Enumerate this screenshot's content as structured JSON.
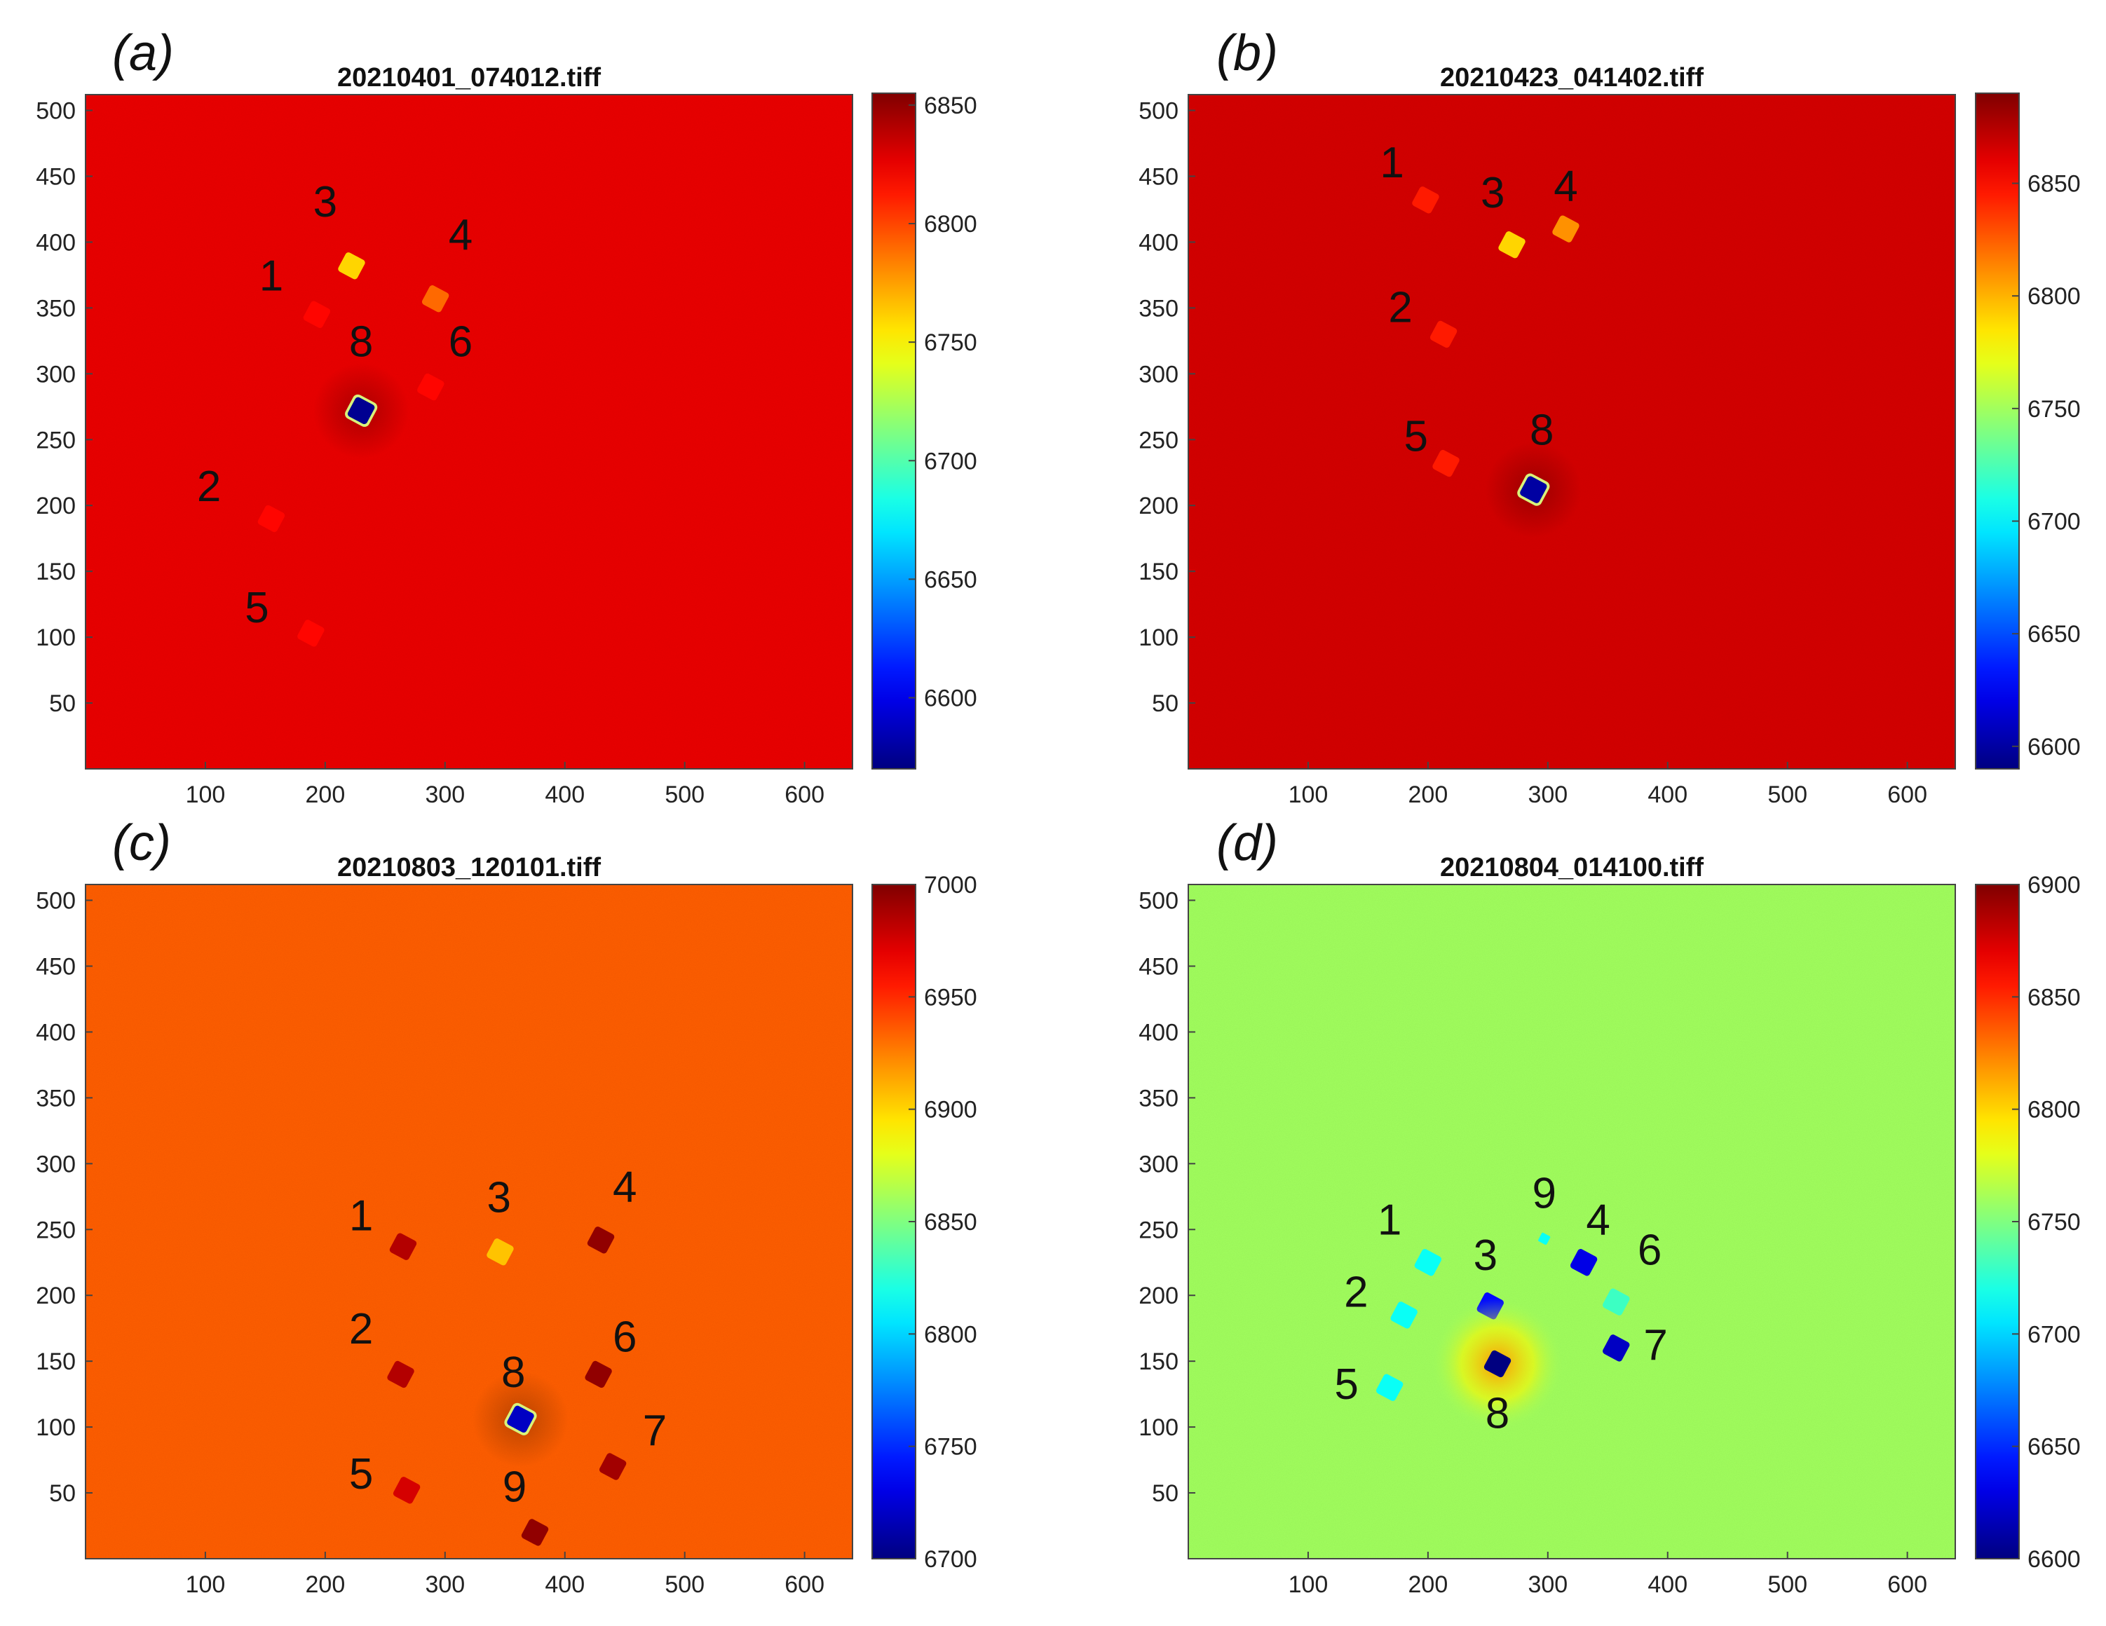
{
  "chart_data": [
    {
      "type": "heatmap",
      "panel_label": "(a)",
      "title": "20210401_074012.tiff",
      "xlim": [
        0,
        640
      ],
      "ylim": [
        0,
        512
      ],
      "xticks": [
        100,
        200,
        300,
        400,
        500,
        600
      ],
      "yticks": [
        50,
        100,
        150,
        200,
        250,
        300,
        350,
        400,
        450,
        500
      ],
      "background_value": 6825,
      "colorbar": {
        "min": 6570,
        "max": 6855,
        "ticks": [
          6600,
          6650,
          6700,
          6750,
          6800,
          6850
        ]
      },
      "markers": [
        {
          "label": "1",
          "x": 193,
          "y": 345,
          "value": 6818,
          "label_x": 155,
          "label_y": 372
        },
        {
          "label": "2",
          "x": 155,
          "y": 190,
          "value": 6818,
          "label_x": 103,
          "label_y": 212
        },
        {
          "label": "3",
          "x": 222,
          "y": 382,
          "value": 6760,
          "label_x": 200,
          "label_y": 428
        },
        {
          "label": "4",
          "x": 292,
          "y": 357,
          "value": 6790,
          "label_x": 313,
          "label_y": 403
        },
        {
          "label": "5",
          "x": 188,
          "y": 103,
          "value": 6818,
          "label_x": 143,
          "label_y": 120
        },
        {
          "label": "6",
          "x": 288,
          "y": 290,
          "value": 6818,
          "label_x": 313,
          "label_y": 322
        },
        {
          "label": "8",
          "x": 230,
          "y": 272,
          "value": 6575,
          "ring": true,
          "label_x": 230,
          "label_y": 322
        }
      ]
    },
    {
      "type": "heatmap",
      "panel_label": "(b)",
      "title": "20210423_041402.tiff",
      "xlim": [
        0,
        640
      ],
      "ylim": [
        0,
        512
      ],
      "xticks": [
        100,
        200,
        300,
        400,
        500,
        600
      ],
      "yticks": [
        50,
        100,
        150,
        200,
        250,
        300,
        350,
        400,
        450,
        500
      ],
      "background_value": 6865,
      "colorbar": {
        "min": 6590,
        "max": 6890,
        "ticks": [
          6600,
          6650,
          6700,
          6750,
          6800,
          6850
        ]
      },
      "markers": [
        {
          "label": "1",
          "x": 198,
          "y": 432,
          "value": 6845,
          "label_x": 170,
          "label_y": 458
        },
        {
          "label": "2",
          "x": 213,
          "y": 330,
          "value": 6845,
          "label_x": 177,
          "label_y": 348
        },
        {
          "label": "3",
          "x": 270,
          "y": 398,
          "value": 6790,
          "label_x": 254,
          "label_y": 435
        },
        {
          "label": "4",
          "x": 315,
          "y": 410,
          "value": 6810,
          "label_x": 315,
          "label_y": 440
        },
        {
          "label": "5",
          "x": 215,
          "y": 232,
          "value": 6845,
          "label_x": 190,
          "label_y": 250
        },
        {
          "label": "8",
          "x": 288,
          "y": 212,
          "value": 6600,
          "ring": true,
          "label_x": 295,
          "label_y": 255
        }
      ]
    },
    {
      "type": "heatmap",
      "panel_label": "(c)",
      "title": "20210803_120101.tiff",
      "xlim": [
        0,
        640
      ],
      "ylim": [
        0,
        512
      ],
      "xticks": [
        100,
        200,
        300,
        400,
        500,
        600
      ],
      "yticks": [
        50,
        100,
        150,
        200,
        250,
        300,
        350,
        400,
        450,
        500
      ],
      "background_value": 6935,
      "colorbar": {
        "min": 6700,
        "max": 7000,
        "ticks": [
          6700,
          6750,
          6800,
          6850,
          6900,
          6950,
          7000
        ]
      },
      "markers": [
        {
          "label": "1",
          "x": 265,
          "y": 237,
          "value": 6985,
          "label_x": 230,
          "label_y": 258
        },
        {
          "label": "2",
          "x": 263,
          "y": 140,
          "value": 6985,
          "label_x": 230,
          "label_y": 172
        },
        {
          "label": "3",
          "x": 346,
          "y": 233,
          "value": 6905,
          "label_x": 345,
          "label_y": 272
        },
        {
          "label": "4",
          "x": 430,
          "y": 242,
          "value": 6995,
          "label_x": 450,
          "label_y": 280
        },
        {
          "label": "5",
          "x": 268,
          "y": 52,
          "value": 6975,
          "label_x": 230,
          "label_y": 62
        },
        {
          "label": "6",
          "x": 428,
          "y": 140,
          "value": 6995,
          "label_x": 450,
          "label_y": 166
        },
        {
          "label": "7",
          "x": 440,
          "y": 70,
          "value": 6990,
          "label_x": 475,
          "label_y": 95
        },
        {
          "label": "8",
          "x": 363,
          "y": 106,
          "value": 6720,
          "ring": true,
          "label_x": 357,
          "label_y": 139
        },
        {
          "label": "9",
          "x": 375,
          "y": 20,
          "value": 6995,
          "label_x": 358,
          "label_y": 52
        }
      ]
    },
    {
      "type": "heatmap",
      "panel_label": "(d)",
      "title": "20210804_014100.tiff",
      "xlim": [
        0,
        640
      ],
      "ylim": [
        0,
        512
      ],
      "xticks": [
        100,
        200,
        300,
        400,
        500,
        600
      ],
      "yticks": [
        50,
        100,
        150,
        200,
        250,
        300,
        350,
        400,
        450,
        500
      ],
      "background_value": 6760,
      "colorbar": {
        "min": 6600,
        "max": 6900,
        "ticks": [
          6600,
          6650,
          6700,
          6750,
          6800,
          6850,
          6900
        ]
      },
      "markers": [
        {
          "label": "1",
          "x": 200,
          "y": 225,
          "value": 6715,
          "label_x": 168,
          "label_y": 255
        },
        {
          "label": "2",
          "x": 180,
          "y": 185,
          "value": 6715,
          "label_x": 140,
          "label_y": 200
        },
        {
          "label": "3",
          "x": 252,
          "y": 192,
          "value": 6640,
          "label_x": 248,
          "label_y": 228
        },
        {
          "label": "4",
          "x": 330,
          "y": 225,
          "value": 6630,
          "label_x": 342,
          "label_y": 255
        },
        {
          "label": "5",
          "x": 168,
          "y": 130,
          "value": 6715,
          "label_x": 132,
          "label_y": 130
        },
        {
          "label": "6",
          "x": 357,
          "y": 195,
          "value": 6730,
          "label_x": 385,
          "label_y": 232
        },
        {
          "label": "7",
          "x": 357,
          "y": 160,
          "value": 6620,
          "label_x": 390,
          "label_y": 160
        },
        {
          "label": "8",
          "x": 258,
          "y": 148,
          "value": 6600,
          "glow": 6820,
          "label_x": 258,
          "label_y": 108
        },
        {
          "label": "9",
          "x": 297,
          "y": 243,
          "value": 6715,
          "small": true,
          "label_x": 297,
          "label_y": 275
        }
      ]
    }
  ]
}
